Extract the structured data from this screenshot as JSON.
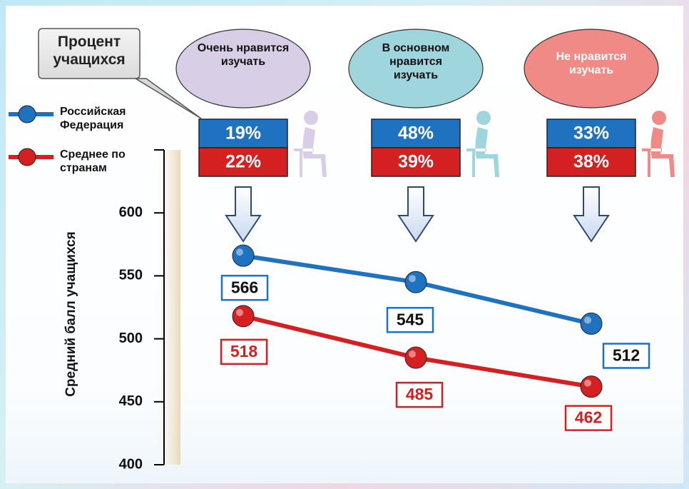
{
  "chart_data": {
    "type": "line",
    "callout": "Процент учащихся",
    "y_label": "Средний балл учащихся",
    "categories": [
      "Очень нравится изучать",
      "В основном нравится изучать",
      "Не нравится изучать"
    ],
    "category_colors": [
      "#d8cfe6",
      "#9fd5dc",
      "#f08a86"
    ],
    "ylim": [
      400,
      650
    ],
    "yticks": [
      400,
      450,
      500,
      550,
      600
    ],
    "series": [
      {
        "name": "Российская Федерация",
        "color": "#1f72c0",
        "values": [
          566,
          545,
          512
        ],
        "shares": [
          19,
          48,
          33
        ],
        "share_labels": [
          "19%",
          "48%",
          "33%"
        ]
      },
      {
        "name": "Среднее по странам",
        "color": "#d42020",
        "values": [
          518,
          485,
          462
        ],
        "shares": [
          22,
          39,
          38
        ],
        "share_labels": [
          "22%",
          "39%",
          "38%"
        ]
      }
    ]
  }
}
